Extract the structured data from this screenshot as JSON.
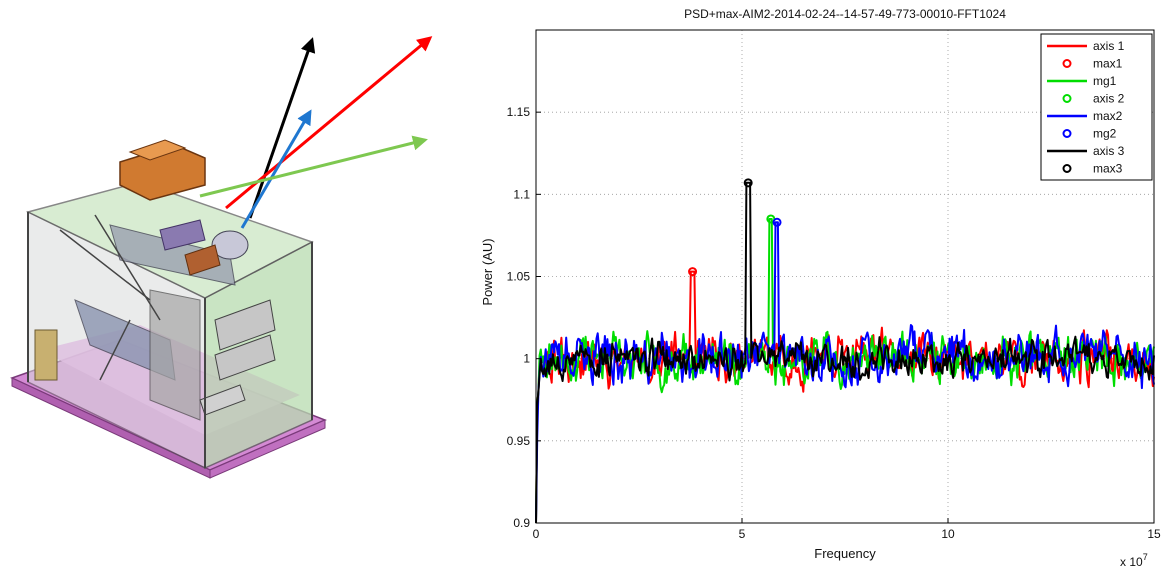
{
  "chart_data": {
    "type": "line",
    "title": "PSD+max-AIM2-2014-02-24--14-57-49-773-00010-FFT1024",
    "xlabel": "Frequency",
    "ylabel": "Power (AU)",
    "x_exponent_label": "x 10",
    "x_exponent_power": "7",
    "xlim": [
      0,
      15
    ],
    "ylim": [
      0.9,
      1.2
    ],
    "xticks": [
      0,
      5,
      10,
      15
    ],
    "yticks": [
      0.9,
      0.95,
      1,
      1.05,
      1.1,
      1.15
    ],
    "grid": true,
    "legend_position": "top-right",
    "legend": [
      {
        "label": "axis 1",
        "style": "line",
        "color": "#ff0000"
      },
      {
        "label": "max1",
        "style": "marker",
        "color": "#ff0000"
      },
      {
        "label": "mg1",
        "style": "line",
        "color": "#00dd00"
      },
      {
        "label": "axis 2",
        "style": "marker",
        "color": "#00dd00"
      },
      {
        "label": "max2",
        "style": "line",
        "color": "#0000ff"
      },
      {
        "label": "mg2",
        "style": "marker",
        "color": "#0000ff"
      },
      {
        "label": "axis 3",
        "style": "line",
        "color": "#000000"
      },
      {
        "label": "max3",
        "style": "marker",
        "color": "#000000"
      }
    ],
    "series": [
      {
        "color": "#ff0000",
        "seed": 11,
        "amplitude": 0.018,
        "peak": {
          "x": 3.8,
          "y": 1.053
        }
      },
      {
        "color": "#00dd00",
        "seed": 23,
        "amplitude": 0.019,
        "peak": {
          "x": 5.7,
          "y": 1.085
        }
      },
      {
        "color": "#0000ff",
        "seed": 37,
        "amplitude": 0.02,
        "peak": {
          "x": 5.85,
          "y": 1.083
        }
      },
      {
        "color": "#000000",
        "seed": 53,
        "amplitude": 0.014,
        "peak": {
          "x": 5.15,
          "y": 1.107
        }
      }
    ],
    "peaks": [
      {
        "x": 3.8,
        "y": 1.053,
        "color": "#ff0000"
      },
      {
        "x": 5.7,
        "y": 1.085,
        "color": "#00dd00"
      },
      {
        "x": 5.85,
        "y": 1.083,
        "color": "#0000ff"
      },
      {
        "x": 5.15,
        "y": 1.107,
        "color": "#000000"
      }
    ]
  },
  "illustration": {
    "arrows": [
      {
        "color": "#000000"
      },
      {
        "color": "#ff0000"
      },
      {
        "color": "#1f77d0"
      },
      {
        "color": "#7ec850"
      }
    ]
  }
}
